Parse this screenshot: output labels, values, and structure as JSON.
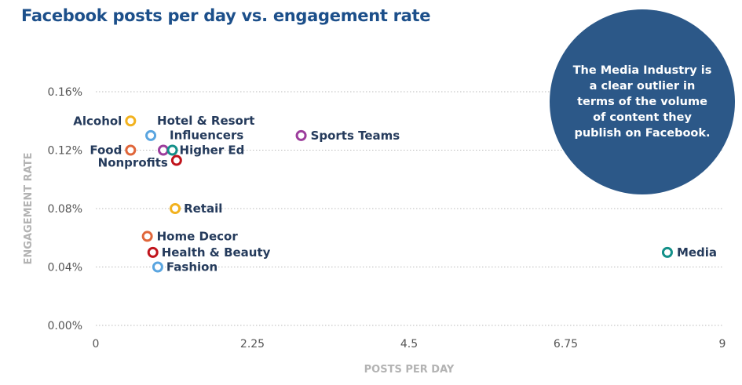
{
  "chart_data": {
    "type": "scatter",
    "title": "Facebook posts per day vs. engagement rate",
    "xlabel": "POSTS PER DAY",
    "ylabel": "ENGAGEMENT RATE",
    "xlim": [
      0,
      9
    ],
    "ylim": [
      0,
      0.16
    ],
    "xticks": [
      "0",
      "2.25",
      "4.5",
      "6.75",
      "9"
    ],
    "xtick_values": [
      0,
      2.25,
      4.5,
      6.75,
      9
    ],
    "yticks": [
      "0.00%",
      "0.04%",
      "0.08%",
      "0.12%",
      "0.16%"
    ],
    "ytick_values": [
      0,
      0.04,
      0.08,
      0.12,
      0.16
    ],
    "grid": "horizontal dotted",
    "annotation": "The Media Industry is a clear outlier in terms of the volume of content they publish on Facebook.",
    "points": [
      {
        "label": "Alcohol",
        "x": 0.5,
        "y": 0.14,
        "color": "#f2b21f"
      },
      {
        "label": "Hotel & Resort",
        "x": 0.79,
        "y": 0.13,
        "color": "#5aa5e0"
      },
      {
        "label": "Influencers",
        "x": 0.97,
        "y": 0.12,
        "color": "#9c3d9c"
      },
      {
        "label": "Food",
        "x": 0.5,
        "y": 0.12,
        "color": "#e0663a"
      },
      {
        "label": "Higher Ed",
        "x": 1.1,
        "y": 0.12,
        "color": "#139089"
      },
      {
        "label": "Nonprofits",
        "x": 1.16,
        "y": 0.113,
        "color": "#c0141c"
      },
      {
        "label": "Sports Teams",
        "x": 2.95,
        "y": 0.13,
        "color": "#9c3d9c"
      },
      {
        "label": "Retail",
        "x": 1.14,
        "y": 0.08,
        "color": "#f2b21f"
      },
      {
        "label": "Home Decor",
        "x": 0.74,
        "y": 0.061,
        "color": "#e0663a"
      },
      {
        "label": "Health & Beauty",
        "x": 0.82,
        "y": 0.05,
        "color": "#c0141c"
      },
      {
        "label": "Fashion",
        "x": 0.89,
        "y": 0.04,
        "color": "#5aa5e0"
      },
      {
        "label": "Media",
        "x": 8.21,
        "y": 0.05,
        "color": "#139089"
      }
    ]
  }
}
